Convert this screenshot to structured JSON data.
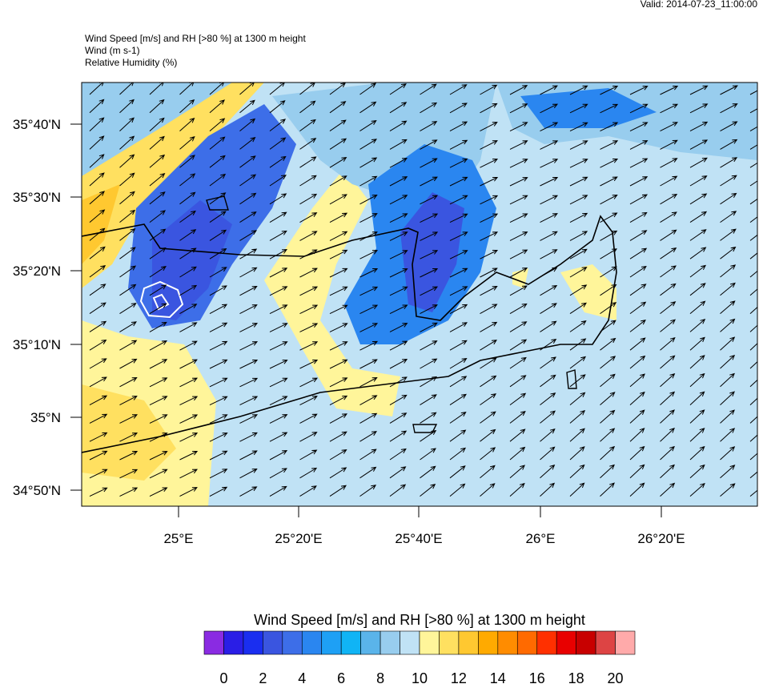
{
  "header": {
    "valid": "Valid: 2014-07-23_11:00:00",
    "lines": [
      "Wind Speed [m/s] and RH [>80 %] at 1300 m height",
      "Wind   (m s-1)",
      "Relative Humidity   (%)"
    ]
  },
  "map": {
    "lat_labels": [
      "35°40'N",
      "35°30'N",
      "35°20'N",
      "35°10'N",
      "35°N",
      "34°50'N"
    ],
    "lon_labels": [
      "25°E",
      "25°20'E",
      "25°40'E",
      "26°E",
      "26°20'E"
    ]
  },
  "colorbar": {
    "title": "Wind Speed [m/s] and RH [>80 %] at 1300 m height",
    "colors": [
      "#8a2be2",
      "#2a1ee6",
      "#1a2ef0",
      "#3a55e0",
      "#3d6ee8",
      "#2a86f0",
      "#1ea0f5",
      "#10b4f5",
      "#5ab4ea",
      "#98cdee",
      "#c0e2f5",
      "#fff59a",
      "#ffe060",
      "#ffc830",
      "#ffaa00",
      "#ff8c00",
      "#ff6a00",
      "#ff3000",
      "#e80000",
      "#c80000",
      "#dd4444",
      "#ffaaaa"
    ],
    "labels": [
      0,
      2,
      4,
      6,
      8,
      10,
      12,
      14,
      16,
      18,
      20
    ]
  }
}
